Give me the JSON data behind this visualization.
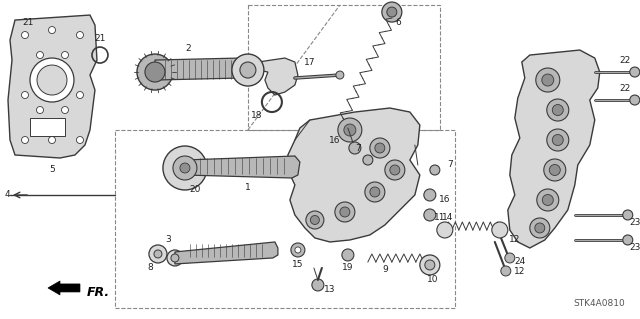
{
  "background_color": "#ffffff",
  "diagram_code": "STK4A0810",
  "fig_width": 6.4,
  "fig_height": 3.19,
  "dpi": 100,
  "line_color": "#3a3a3a",
  "text_color": "#222222",
  "label_fontsize": 7.0,
  "code_fontsize": 6.5,
  "fr_text": "FR.",
  "dashed_color": "#888888",
  "fill_light": "#d8d8d8",
  "fill_mid": "#b8b8b8",
  "fill_dark": "#909090"
}
